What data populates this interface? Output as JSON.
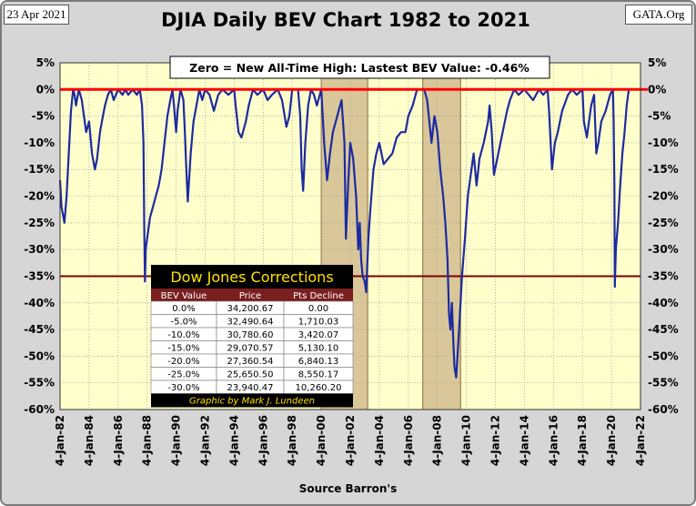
{
  "header": {
    "date": "23 Apr 2021",
    "brand": "GATA.Org",
    "title": "DJIA Daily BEV Chart 1982 to 2021",
    "source": "Source Barron's"
  },
  "note": "Zero = New All-Time High: Lastest BEV Value: -0.46%",
  "colors": {
    "plot_bg": "#ffffcc",
    "line": "#1c2aa0",
    "zero_line": "#ff0000",
    "minus35_line": "#7a0000",
    "shade": "#d9c79a",
    "table_header": "#7a1e1e",
    "table_title_bg": "#000000"
  },
  "table": {
    "title": "Dow Jones Corrections",
    "headers": [
      "BEV Value",
      "Price",
      "Pts Decline"
    ],
    "rows": [
      [
        "0.0%",
        "34,200.67",
        "0.00"
      ],
      [
        "-5.0%",
        "32,490.64",
        "1,710.03"
      ],
      [
        "-10.0%",
        "30,780.60",
        "3,420.07"
      ],
      [
        "-15.0%",
        "29,070.57",
        "5,130.10"
      ],
      [
        "-20.0%",
        "27,360.54",
        "6,840.13"
      ],
      [
        "-25.0%",
        "25,650.50",
        "8,550.17"
      ],
      [
        "-30.0%",
        "23,940.47",
        "10,260.20"
      ]
    ],
    "credit": "Graphic by Mark J. Lundeen"
  },
  "chart_data": {
    "type": "line",
    "title": "DJIA Daily BEV Chart 1982 to 2021",
    "xlabel": "Source Barron's",
    "ylabel": "",
    "xlim": [
      1982.0,
      2022.0
    ],
    "ylim": [
      -60,
      5
    ],
    "y_ticks": [
      "5%",
      "0%",
      "-5%",
      "-10%",
      "-15%",
      "-20%",
      "-25%",
      "-30%",
      "-35%",
      "-40%",
      "-45%",
      "-50%",
      "-55%",
      "-60%"
    ],
    "y_tick_values": [
      5,
      0,
      -5,
      -10,
      -15,
      -20,
      -25,
      -30,
      -35,
      -40,
      -45,
      -50,
      -55,
      -60
    ],
    "x_ticks": [
      "4-Jan-82",
      "4-Jan-84",
      "4-Jan-86",
      "4-Jan-88",
      "4-Jan-90",
      "4-Jan-92",
      "4-Jan-94",
      "4-Jan-96",
      "4-Jan-98",
      "4-Jan-00",
      "4-Jan-02",
      "4-Jan-04",
      "4-Jan-06",
      "4-Jan-08",
      "4-Jan-10",
      "4-Jan-12",
      "4-Jan-14",
      "4-Jan-16",
      "4-Jan-18",
      "4-Jan-20",
      "4-Jan-22"
    ],
    "x_tick_values": [
      1982,
      1984,
      1986,
      1988,
      1990,
      1992,
      1994,
      1996,
      1998,
      2000,
      2002,
      2004,
      2006,
      2008,
      2010,
      2012,
      2014,
      2016,
      2018,
      2020,
      2022
    ],
    "reference_lines": [
      {
        "y": 0,
        "color": "#ff0000"
      },
      {
        "y": -35,
        "color": "#7a0000"
      }
    ],
    "shaded_ranges": [
      [
        2000.0,
        2003.2
      ],
      [
        2007.0,
        2009.6
      ]
    ],
    "series": [
      {
        "x": [
          1982.0,
          1982.1,
          1982.3,
          1982.45,
          1982.6,
          1982.75,
          1982.9,
          1983.0,
          1983.1,
          1983.3,
          1983.5,
          1983.6,
          1983.8,
          1984.0,
          1984.2,
          1984.4,
          1984.55,
          1984.75,
          1984.95,
          1985.1,
          1985.3,
          1985.5,
          1985.7,
          1986.0,
          1986.3,
          1986.5,
          1986.7,
          1987.0,
          1987.3,
          1987.5,
          1987.65,
          1987.75,
          1987.8,
          1987.85,
          1987.9,
          1988.0,
          1988.2,
          1988.4,
          1988.6,
          1988.8,
          1989.0,
          1989.2,
          1989.4,
          1989.6,
          1989.75,
          1989.85,
          1990.0,
          1990.1,
          1990.3,
          1990.5,
          1990.6,
          1990.7,
          1990.8,
          1991.0,
          1991.2,
          1991.4,
          1991.6,
          1991.8,
          1992.0,
          1992.3,
          1992.6,
          1992.9,
          1993.2,
          1993.6,
          1994.0,
          1994.1,
          1994.3,
          1994.5,
          1994.8,
          1995.0,
          1995.3,
          1995.6,
          1996.0,
          1996.3,
          1996.6,
          1997.0,
          1997.3,
          1997.6,
          1997.8,
          1998.0,
          1998.4,
          1998.55,
          1998.65,
          1998.75,
          1998.9,
          1999.1,
          1999.3,
          1999.5,
          1999.7,
          1999.8,
          2000.0,
          2000.2,
          2000.4,
          2000.6,
          2000.8,
          2001.0,
          2001.2,
          2001.4,
          2001.6,
          2001.7,
          2001.85,
          2002.0,
          2002.2,
          2002.4,
          2002.55,
          2002.65,
          2002.75,
          2002.85,
          2003.0,
          2003.1,
          2003.25,
          2003.4,
          2003.6,
          2003.8,
          2004.0,
          2004.3,
          2004.6,
          2004.9,
          2005.2,
          2005.5,
          2005.8,
          2006.0,
          2006.3,
          2006.6,
          2006.9,
          2007.1,
          2007.3,
          2007.6,
          2007.8,
          2008.0,
          2008.2,
          2008.4,
          2008.55,
          2008.7,
          2008.8,
          2008.9,
          2009.0,
          2009.1,
          2009.18,
          2009.3,
          2009.5,
          2009.7,
          2009.9,
          2010.1,
          2010.3,
          2010.5,
          2010.7,
          2010.9,
          2011.2,
          2011.5,
          2011.6,
          2011.75,
          2011.9,
          2012.2,
          2012.5,
          2012.8,
          2013.0,
          2013.3,
          2013.6,
          2014.0,
          2014.3,
          2014.6,
          2015.0,
          2015.3,
          2015.6,
          2015.7,
          2015.9,
          2016.1,
          2016.3,
          2016.6,
          2017.0,
          2017.3,
          2017.6,
          2018.0,
          2018.1,
          2018.3,
          2018.6,
          2018.8,
          2018.95,
          2019.1,
          2019.3,
          2019.6,
          2019.9,
          2020.1,
          2020.15,
          2020.2,
          2020.23,
          2020.3,
          2020.45,
          2020.6,
          2020.75,
          2020.9,
          2021.05,
          2021.2,
          2021.3
        ],
        "y": [
          -17,
          -22,
          -25,
          -20,
          -12,
          -4,
          0,
          -1,
          -3,
          0,
          -2,
          -4,
          -8,
          -6,
          -12,
          -15,
          -13,
          -8,
          -5,
          -3,
          -1,
          0,
          -2,
          0,
          -1,
          0,
          -1,
          0,
          -1,
          0,
          -3,
          -10,
          -25,
          -36,
          -30,
          -28,
          -24,
          -22,
          -20,
          -18,
          -15,
          -10,
          -5,
          -2,
          0,
          -3,
          -8,
          -4,
          0,
          -2,
          -8,
          -15,
          -21,
          -12,
          -6,
          -3,
          0,
          -2,
          0,
          -1,
          -4,
          -1,
          0,
          -1,
          0,
          -3,
          -8,
          -9,
          -6,
          -3,
          0,
          -1,
          0,
          -2,
          -1,
          0,
          -2,
          -7,
          -5,
          0,
          0,
          -5,
          -15,
          -19,
          -10,
          -3,
          0,
          -1,
          -3,
          -2,
          0,
          -10,
          -17,
          -12,
          -8,
          -6,
          -4,
          -2,
          -10,
          -28,
          -18,
          -10,
          -13,
          -20,
          -30,
          -25,
          -32,
          -35,
          -36,
          -38,
          -28,
          -22,
          -15,
          -12,
          -10,
          -14,
          -13,
          -12,
          -9,
          -8,
          -8,
          -5,
          -3,
          0,
          0,
          0,
          -2,
          -10,
          -5,
          -8,
          -15,
          -20,
          -25,
          -32,
          -42,
          -45,
          -40,
          -47,
          -52,
          -54,
          -45,
          -35,
          -28,
          -20,
          -16,
          -12,
          -18,
          -13,
          -10,
          -6,
          -3,
          -8,
          -16,
          -12,
          -8,
          -4,
          -2,
          0,
          -1,
          0,
          -1,
          -2,
          0,
          -1,
          0,
          -4,
          -15,
          -10,
          -8,
          -4,
          -1,
          0,
          -1,
          0,
          -6,
          -9,
          -3,
          -1,
          -12,
          -10,
          -6,
          -4,
          -1,
          0,
          -6,
          -18,
          -37,
          -30,
          -25,
          -18,
          -12,
          -8,
          -3,
          0,
          0
        ]
      }
    ]
  }
}
